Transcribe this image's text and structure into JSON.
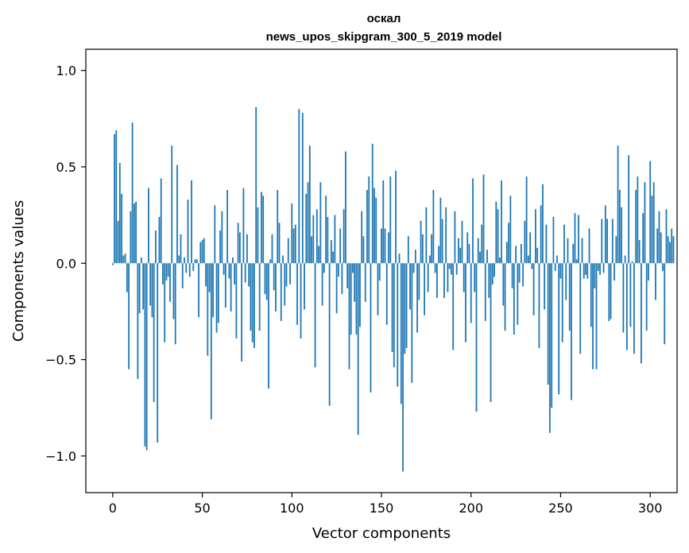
{
  "chart_data": {
    "type": "bar",
    "title": "оскал",
    "subtitle": "news_upos_skipgram_300_5_2019 model",
    "xlabel": "Vector components",
    "ylabel": "Components values",
    "xlim": [
      -15,
      315
    ],
    "ylim": [
      -1.19,
      1.11
    ],
    "xticks": [
      0,
      50,
      100,
      150,
      200,
      250,
      300
    ],
    "xtick_labels": [
      "0",
      "50",
      "100",
      "150",
      "200",
      "250",
      "300"
    ],
    "yticks": [
      -1.0,
      -0.5,
      0.0,
      0.5,
      1.0
    ],
    "ytick_labels": [
      "−1.0",
      "−0.5",
      "0.0",
      "0.5",
      "1.0"
    ],
    "bar_color": "#1f77b4",
    "grid": false,
    "x_start": 0,
    "values": [
      -0.01,
      0.67,
      0.69,
      0.22,
      0.52,
      0.36,
      0.04,
      0.05,
      -0.15,
      -0.55,
      0.27,
      0.73,
      0.31,
      0.32,
      -0.6,
      -0.26,
      0.03,
      -0.24,
      -0.95,
      -0.97,
      0.39,
      -0.22,
      -0.28,
      -0.72,
      0.17,
      -0.93,
      0.24,
      0.44,
      -0.11,
      -0.41,
      -0.09,
      -0.07,
      -0.2,
      0.61,
      -0.29,
      -0.42,
      0.51,
      0.04,
      0.15,
      -0.13,
      0.03,
      -0.05,
      0.33,
      -0.07,
      0.43,
      -0.04,
      0.02,
      0.02,
      -0.28,
      0.11,
      0.12,
      0.13,
      -0.12,
      -0.48,
      -0.15,
      -0.81,
      -0.28,
      0.3,
      -0.36,
      -0.31,
      0.17,
      0.27,
      -0.06,
      -0.23,
      0.38,
      -0.08,
      -0.25,
      0.03,
      -0.11,
      -0.39,
      0.21,
      0.16,
      -0.51,
      0.39,
      -0.1,
      0.15,
      -0.12,
      -0.35,
      -0.41,
      -0.44,
      0.81,
      0.29,
      -0.35,
      0.37,
      0.35,
      -0.16,
      -0.19,
      -0.65,
      0.02,
      0.15,
      -0.14,
      -0.25,
      0.38,
      0.21,
      -0.3,
      0.04,
      -0.22,
      -0.12,
      0.13,
      -0.11,
      0.31,
      0.18,
      0.2,
      -0.32,
      0.8,
      -0.39,
      0.78,
      -0.24,
      0.36,
      0.42,
      0.61,
      0.14,
      0.25,
      -0.54,
      0.28,
      0.09,
      0.42,
      -0.22,
      -0.05,
      0.35,
      0.24,
      -0.74,
      0.12,
      0.06,
      0.25,
      -0.26,
      -0.07,
      0.18,
      -0.16,
      0.28,
      0.58,
      -0.13,
      -0.55,
      -0.37,
      -0.05,
      -0.2,
      -0.37,
      -0.89,
      -0.33,
      0.27,
      0.14,
      -0.2,
      0.38,
      0.45,
      -0.67,
      0.62,
      0.39,
      0.34,
      -0.27,
      -0.09,
      0.18,
      0.43,
      0.18,
      -0.32,
      0.16,
      0.45,
      -0.46,
      -0.54,
      0.48,
      -0.64,
      0.05,
      -0.73,
      -1.08,
      -0.47,
      -0.44,
      0.14,
      -0.24,
      -0.62,
      -0.05,
      0.07,
      -0.36,
      -0.19,
      0.22,
      0.15,
      -0.27,
      0.29,
      -0.15,
      0.04,
      0.15,
      0.38,
      -0.05,
      -0.18,
      0.09,
      0.34,
      0.23,
      -0.18,
      0.29,
      -0.15,
      -0.03,
      -0.06,
      -0.45,
      0.27,
      -0.06,
      0.13,
      0.08,
      0.22,
      -0.15,
      -0.41,
      0.16,
      0.1,
      -0.31,
      0.44,
      -0.15,
      -0.77,
      0.13,
      0.06,
      0.2,
      0.46,
      -0.3,
      0.07,
      -0.18,
      -0.72,
      -0.11,
      -0.07,
      0.32,
      0.28,
      0.03,
      0.43,
      -0.22,
      -0.35,
      0.11,
      0.21,
      0.35,
      -0.13,
      -0.37,
      0.09,
      -0.32,
      -0.1,
      0.1,
      -0.12,
      0.22,
      0.45,
      0.04,
      0.16,
      -0.03,
      -0.27,
      0.28,
      0.08,
      -0.44,
      0.3,
      0.41,
      -0.24,
      0.2,
      -0.63,
      -0.88,
      -0.75,
      0.24,
      -0.04,
      0.04,
      -0.68,
      -0.08,
      -0.41,
      0.2,
      -0.19,
      0.13,
      -0.35,
      -0.71,
      0.1,
      0.26,
      0.02,
      0.25,
      -0.47,
      0.13,
      -0.08,
      -0.06,
      -0.08,
      0.18,
      -0.33,
      -0.55,
      -0.13,
      -0.55,
      -0.04,
      -0.06,
      0.23,
      -0.05,
      0.3,
      0.23,
      -0.3,
      -0.29,
      0.23,
      -0.09,
      0.14,
      0.61,
      0.38,
      0.29,
      -0.36,
      0.04,
      -0.45,
      0.56,
      -0.33,
      0.01,
      -0.47,
      0.38,
      0.45,
      0.12,
      -0.52,
      0.26,
      0.42,
      -0.35,
      -0.09,
      0.53,
      0.35,
      0.42,
      -0.19,
      0.18,
      0.27,
      0.16,
      -0.04,
      -0.42,
      0.28,
      0.14,
      0.11,
      0.18,
      0.14
    ]
  }
}
